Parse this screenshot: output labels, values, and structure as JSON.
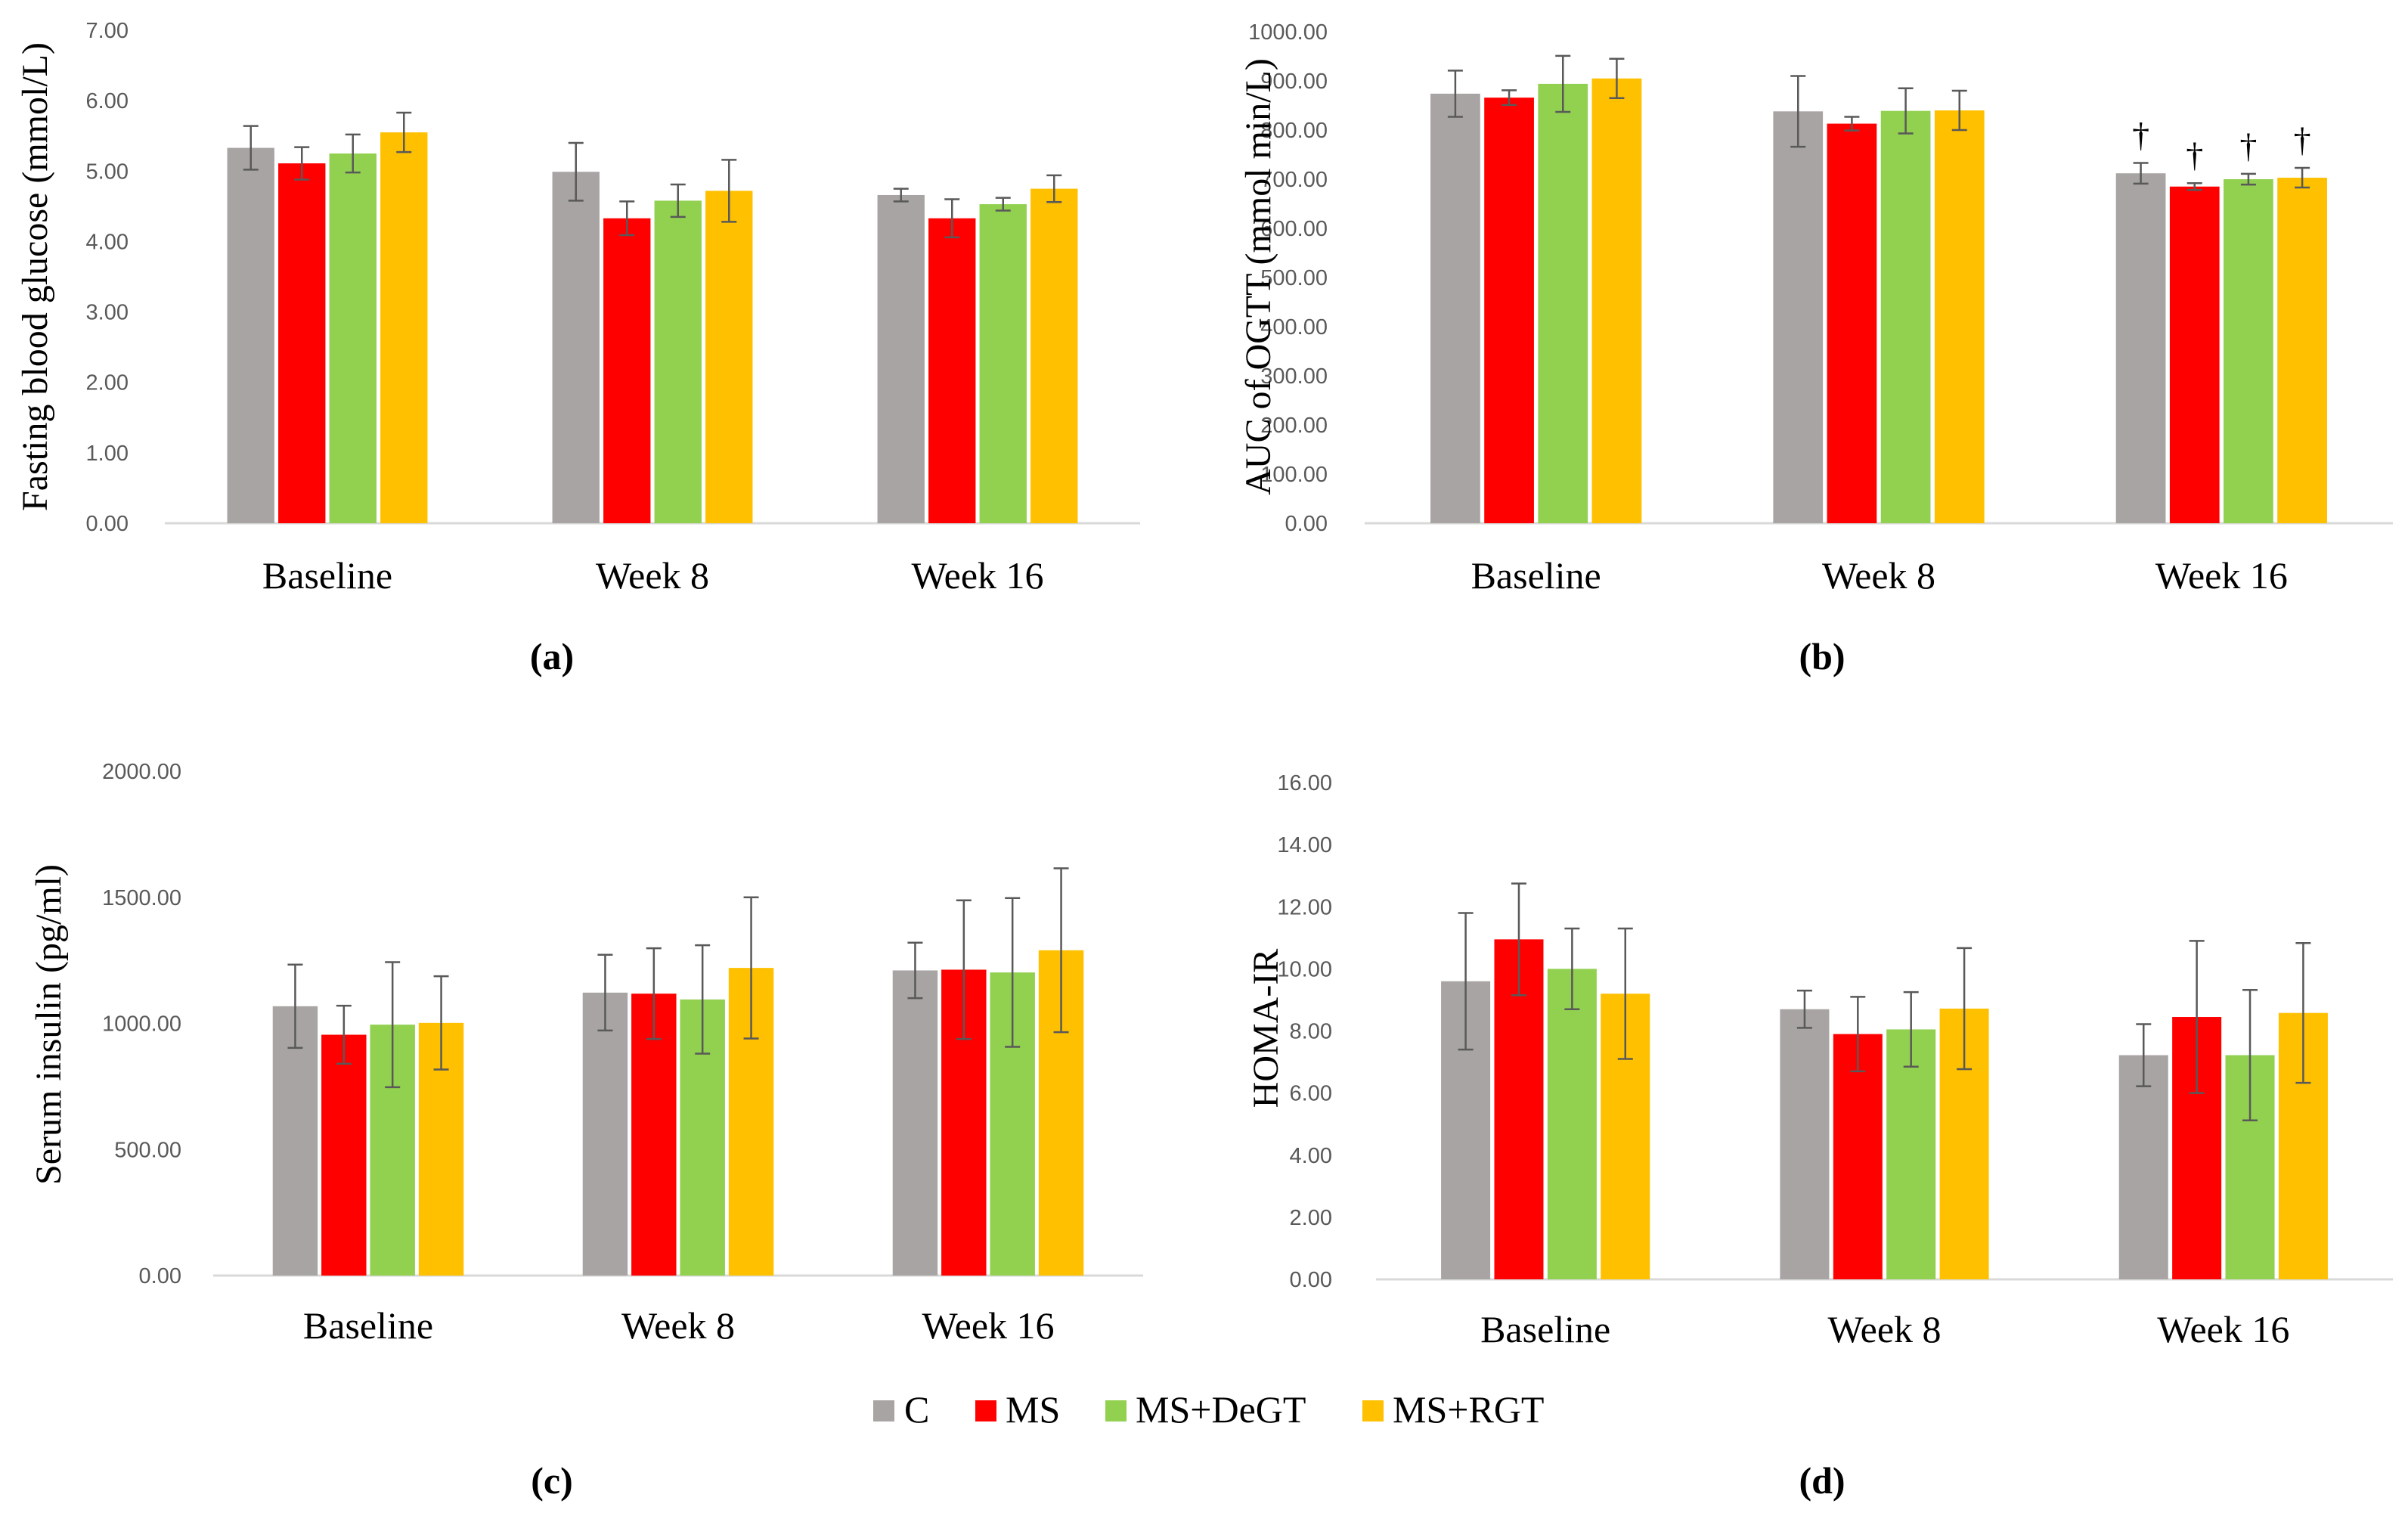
{
  "legend": [
    {
      "name": "C",
      "color": "#a8a4a3"
    },
    {
      "name": "MS",
      "color": "#ff0000"
    },
    {
      "name": "MS+DeGT",
      "color": "#92d050"
    },
    {
      "name": "MS+RGT",
      "color": "#ffc000"
    }
  ],
  "colors": {
    "axis": "#d9d9d9",
    "error_bar": "#595959",
    "tick_text": "#595959"
  },
  "chart_data": [
    {
      "id": "a",
      "type": "bar",
      "panel_label": "(a)",
      "ylabel": "Fasting blood glucose (mmol/L)",
      "xlabel": "",
      "categories": [
        "Baseline",
        "Week 8",
        "Week 16"
      ],
      "ylim": [
        0,
        7
      ],
      "yticks": [
        "0.00",
        "1.00",
        "2.00",
        "3.00",
        "4.00",
        "5.00",
        "6.00",
        "7.00"
      ],
      "grid": false,
      "series": [
        {
          "name": "C",
          "values": [
            5.33,
            4.99,
            4.66
          ],
          "errors": [
            0.31,
            0.41,
            0.09
          ]
        },
        {
          "name": "MS",
          "values": [
            5.11,
            4.33,
            4.33
          ],
          "errors": [
            0.23,
            0.24,
            0.27
          ]
        },
        {
          "name": "MS+DeGT",
          "values": [
            5.25,
            4.58,
            4.53
          ],
          "errors": [
            0.27,
            0.23,
            0.09
          ]
        },
        {
          "name": "MS+RGT",
          "values": [
            5.55,
            4.72,
            4.75
          ],
          "errors": [
            0.28,
            0.44,
            0.19
          ]
        }
      ],
      "annotations": []
    },
    {
      "id": "b",
      "type": "bar",
      "panel_label": "(b)",
      "ylabel": "AUC of OGTT (mmol min/L)",
      "xlabel": "",
      "categories": [
        "Baseline",
        "Week 8",
        "Week 16"
      ],
      "ylim": [
        0,
        1000
      ],
      "yticks": [
        "0.00",
        "100.00",
        "200.00",
        "300.00",
        "400.00",
        "500.00",
        "600.00",
        "700.00",
        "800.00",
        "900.00",
        "1000.00"
      ],
      "grid": false,
      "series": [
        {
          "name": "C",
          "values": [
            874,
            838,
            712
          ],
          "errors": [
            47,
            72,
            21
          ]
        },
        {
          "name": "MS",
          "values": [
            866,
            813,
            685
          ],
          "errors": [
            15,
            14,
            7
          ]
        },
        {
          "name": "MS+DeGT",
          "values": [
            894,
            839,
            700
          ],
          "errors": [
            57,
            46,
            11
          ]
        },
        {
          "name": "MS+RGT",
          "values": [
            905,
            840,
            703
          ],
          "errors": [
            40,
            40,
            20
          ]
        }
      ],
      "annotations": [
        {
          "text": "†",
          "category": "Week 16",
          "series": "C"
        },
        {
          "text": "†",
          "category": "Week 16",
          "series": "MS"
        },
        {
          "text": "†",
          "category": "Week 16",
          "series": "MS+DeGT"
        },
        {
          "text": "†",
          "category": "Week 16",
          "series": "MS+RGT"
        }
      ]
    },
    {
      "id": "c",
      "type": "bar",
      "panel_label": "(c)",
      "ylabel": "Serum insulin (pg/ml)",
      "xlabel": "",
      "categories": [
        "Baseline",
        "Week 8",
        "Week 16"
      ],
      "ylim": [
        0,
        2000
      ],
      "yticks": [
        "0.00",
        "500.00",
        "1000.00",
        "1500.00",
        "2000.00"
      ],
      "grid": false,
      "series": [
        {
          "name": "C",
          "values": [
            1068,
            1122,
            1210
          ],
          "errors": [
            165,
            150,
            110
          ]
        },
        {
          "name": "MS",
          "values": [
            955,
            1118,
            1213
          ],
          "errors": [
            115,
            180,
            275
          ]
        },
        {
          "name": "MS+DeGT",
          "values": [
            995,
            1095,
            1202
          ],
          "errors": [
            248,
            215,
            295
          ]
        },
        {
          "name": "MS+RGT",
          "values": [
            1002,
            1220,
            1290
          ],
          "errors": [
            185,
            280,
            325
          ]
        }
      ],
      "annotations": []
    },
    {
      "id": "d",
      "type": "bar",
      "panel_label": "(d)",
      "ylabel": "HOMA-IR",
      "xlabel": "",
      "categories": [
        "Baseline",
        "Week 8",
        "Week 16"
      ],
      "ylim": [
        0,
        16
      ],
      "yticks": [
        "0.00",
        "2.00",
        "4.00",
        "6.00",
        "8.00",
        "10.00",
        "12.00",
        "14.00",
        "16.00"
      ],
      "grid": false,
      "series": [
        {
          "name": "C",
          "values": [
            9.6,
            8.7,
            7.22
          ],
          "errors": [
            2.2,
            0.6,
            1.0
          ]
        },
        {
          "name": "MS",
          "values": [
            10.95,
            7.9,
            8.45
          ],
          "errors": [
            1.8,
            1.2,
            2.45
          ]
        },
        {
          "name": "MS+DeGT",
          "values": [
            10.0,
            8.05,
            7.22
          ],
          "errors": [
            1.3,
            1.2,
            2.1
          ]
        },
        {
          "name": "MS+RGT",
          "values": [
            9.2,
            8.72,
            8.58
          ],
          "errors": [
            2.1,
            1.95,
            2.25
          ]
        }
      ],
      "annotations": []
    }
  ]
}
